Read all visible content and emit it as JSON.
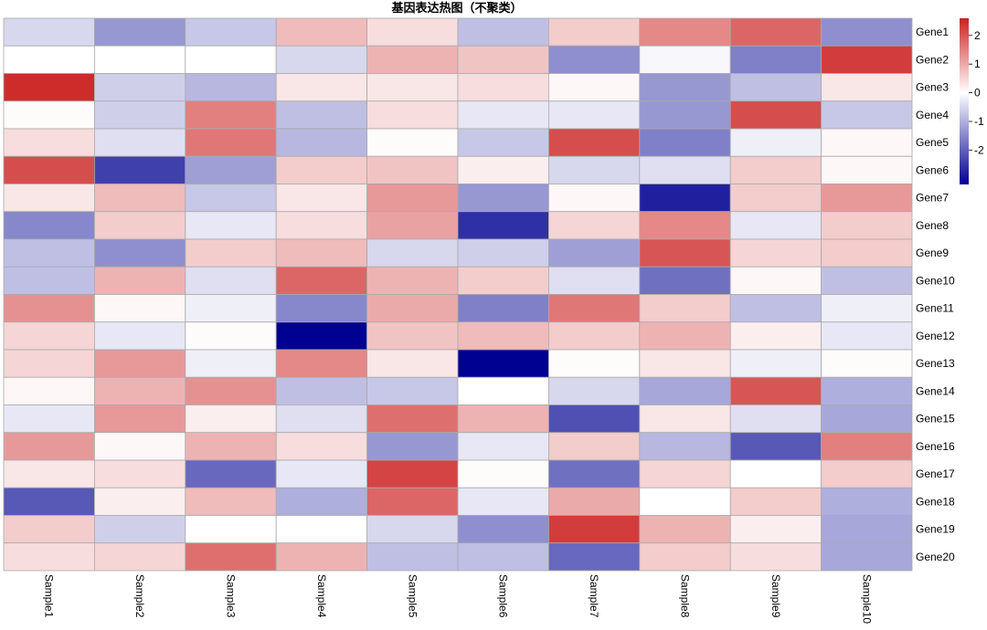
{
  "chart_data": {
    "type": "heatmap",
    "title": "基因表达热图（不聚类）",
    "rows": [
      "Gene1",
      "Gene2",
      "Gene3",
      "Gene4",
      "Gene5",
      "Gene6",
      "Gene7",
      "Gene8",
      "Gene9",
      "Gene10",
      "Gene11",
      "Gene12",
      "Gene13",
      "Gene14",
      "Gene15",
      "Gene16",
      "Gene17",
      "Gene18",
      "Gene19",
      "Gene20"
    ],
    "columns": [
      "Sample1",
      "Sample2",
      "Sample3",
      "Sample4",
      "Sample5",
      "Sample6",
      "Sample7",
      "Sample8",
      "Sample9",
      "Sample10"
    ],
    "values": [
      [
        -0.5,
        -1.3,
        -0.7,
        0.8,
        0.4,
        -0.8,
        0.6,
        1.4,
        1.8,
        -1.4
      ],
      [
        0.0,
        0.0,
        0.0,
        -0.5,
        0.9,
        0.7,
        -1.4,
        -0.1,
        -1.6,
        2.3
      ],
      [
        2.5,
        -0.6,
        -0.9,
        0.3,
        0.3,
        0.4,
        0.1,
        -1.3,
        -0.8,
        0.3
      ],
      [
        0.05,
        -0.6,
        1.5,
        -0.8,
        0.4,
        -0.3,
        -0.3,
        -1.3,
        2.1,
        -0.7
      ],
      [
        0.4,
        -0.4,
        1.6,
        -0.9,
        0.05,
        -0.7,
        2.1,
        -1.6,
        -0.2,
        0.1
      ],
      [
        2.1,
        -2.4,
        -1.2,
        0.6,
        0.7,
        0.2,
        -0.5,
        -0.4,
        0.6,
        0.1
      ],
      [
        0.3,
        0.8,
        -0.7,
        0.3,
        1.2,
        -1.3,
        0.1,
        -2.8,
        0.6,
        1.2
      ],
      [
        -1.5,
        0.6,
        -0.3,
        0.4,
        1.1,
        -2.6,
        0.5,
        1.4,
        -0.3,
        0.6
      ],
      [
        -0.8,
        -1.4,
        0.6,
        0.8,
        -0.5,
        -0.6,
        -1.2,
        2.0,
        0.5,
        0.6
      ],
      [
        -0.8,
        0.9,
        -0.4,
        1.8,
        0.9,
        0.6,
        -0.4,
        -1.8,
        0.1,
        -0.8
      ],
      [
        1.3,
        0.1,
        -0.2,
        -1.5,
        1.0,
        -1.6,
        1.6,
        0.6,
        -0.8,
        -0.2
      ],
      [
        0.5,
        -0.3,
        0.05,
        -3.2,
        0.7,
        0.8,
        0.6,
        0.9,
        0.2,
        -0.3
      ],
      [
        0.5,
        1.2,
        -0.2,
        1.4,
        0.3,
        -3.2,
        0.05,
        0.3,
        -0.2,
        0.05
      ],
      [
        0.1,
        0.9,
        1.3,
        -0.8,
        -0.7,
        0.0,
        -0.5,
        -1.1,
        2.0,
        -1.0
      ],
      [
        -0.3,
        1.2,
        0.2,
        -0.4,
        1.7,
        0.9,
        -2.2,
        0.3,
        -0.4,
        -1.1
      ],
      [
        1.2,
        0.1,
        0.9,
        0.4,
        -1.3,
        -0.3,
        0.6,
        -0.9,
        -2.1,
        1.5
      ],
      [
        0.3,
        0.4,
        -1.9,
        -0.3,
        2.2,
        0.05,
        -1.8,
        0.5,
        0.0,
        0.6
      ],
      [
        -2.1,
        0.2,
        0.8,
        -1.0,
        1.8,
        -0.3,
        1.0,
        0.0,
        0.6,
        -1.0
      ],
      [
        0.6,
        -0.6,
        0.0,
        0.0,
        -0.5,
        -1.4,
        2.3,
        0.9,
        0.2,
        -1.1
      ],
      [
        0.4,
        0.5,
        1.7,
        0.9,
        -0.8,
        -0.8,
        -1.9,
        0.6,
        0.4,
        -1.1
      ]
    ],
    "legend": {
      "ticks": [
        2,
        1,
        0,
        -1,
        -2
      ],
      "range": [
        -3.2,
        2.6
      ],
      "colors": {
        "low": "#000091",
        "mid": "#ffffff",
        "high": "#cc2222"
      }
    },
    "grid_color": "#aaaaaa"
  }
}
